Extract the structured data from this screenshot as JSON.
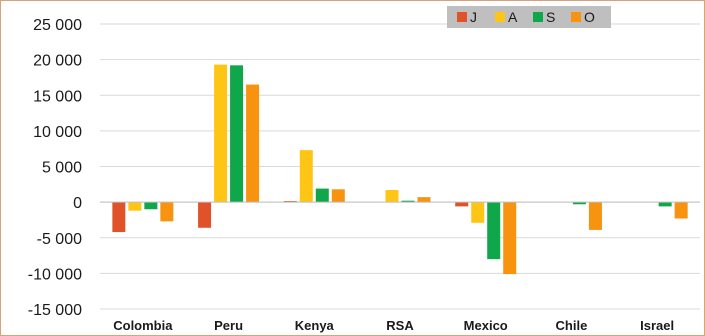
{
  "chart_data": {
    "type": "bar",
    "categories": [
      "Colombia",
      "Peru",
      "Kenya",
      "RSA",
      "Mexico",
      "Chile",
      "Israel"
    ],
    "series": [
      {
        "name": "J",
        "color": "#e0532a",
        "values": [
          -4200,
          -3600,
          150,
          0,
          -600,
          0,
          0
        ]
      },
      {
        "name": "A",
        "color": "#ffc515",
        "values": [
          -1200,
          19300,
          7300,
          1700,
          -2900,
          0,
          0
        ]
      },
      {
        "name": "S",
        "color": "#10a64a",
        "values": [
          -1000,
          19200,
          1900,
          200,
          -8000,
          -300,
          -600
        ]
      },
      {
        "name": "O",
        "color": "#f7930f",
        "values": [
          -2700,
          16500,
          1800,
          700,
          -10100,
          -3900,
          -2300
        ]
      }
    ],
    "ylim": [
      -15000,
      25000
    ],
    "yticks": [
      25000,
      20000,
      15000,
      10000,
      5000,
      0,
      -5000,
      -10000,
      -15000
    ],
    "ytick_labels": [
      "25 000",
      "20 000",
      "15 000",
      "10 000",
      "5 000",
      "0",
      "-5 000",
      "-10 000",
      "-15 000"
    ],
    "grid": true,
    "legend_position": "top-right",
    "legend_background": "#bfbfbf"
  }
}
